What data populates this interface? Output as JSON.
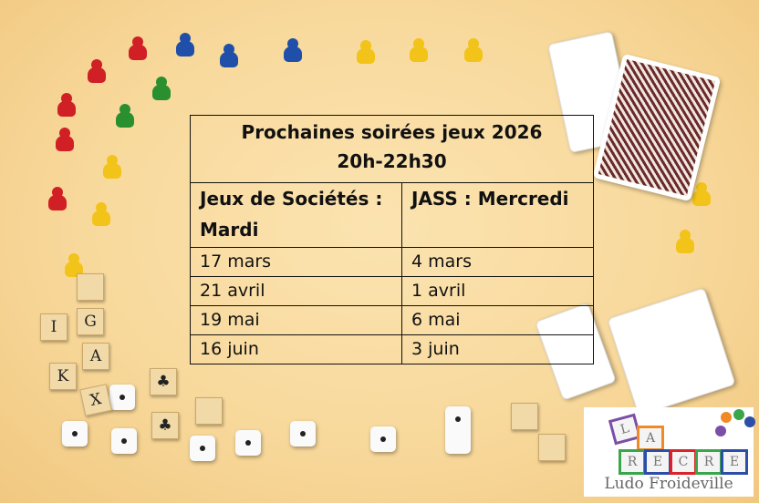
{
  "poster": {
    "title": "Prochaines soirées jeux 2026",
    "time": "20h-22h30",
    "columns": [
      "Jeux de Sociétés : Mardi",
      "JASS : Mercredi"
    ],
    "rows": [
      [
        "17 mars",
        "4 mars"
      ],
      [
        "21 avril",
        "1 avril"
      ],
      [
        "19 mai",
        "6 mai"
      ],
      [
        "16 juin",
        "3 juin"
      ]
    ]
  },
  "decor": {
    "letter_tiles": [
      "I",
      "G",
      "K",
      "A",
      "X"
    ]
  },
  "logo": {
    "blocks": [
      "L",
      "A",
      "R",
      "E",
      "C",
      "R",
      "E"
    ],
    "name": "Ludo Froideville",
    "alt": "LA RECRE Ludo Froideville"
  },
  "colors": {
    "background": "#f8d99c",
    "pawn_red": "#d01f25",
    "pawn_blue": "#1f4fa8",
    "pawn_yellow": "#f2c318",
    "pawn_green": "#2a8f2e"
  }
}
